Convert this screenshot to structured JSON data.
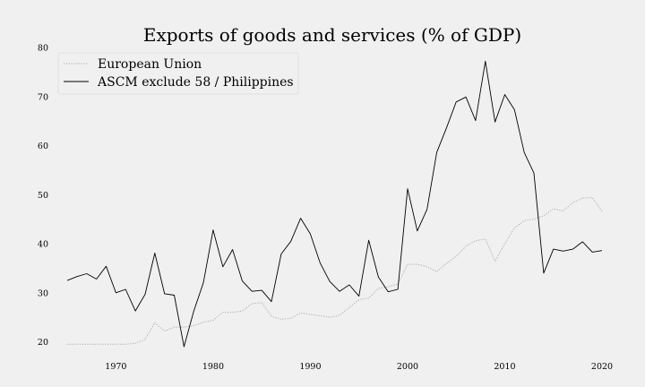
{
  "chart_data": {
    "type": "line",
    "title": "Exports of goods and services (% of GDP)",
    "xlabel": "",
    "ylabel": "",
    "xlim": [
      1962.5,
      2023.5
    ],
    "ylim": [
      17,
      80
    ],
    "x_ticks": [
      "1970",
      "1980",
      "1990",
      "2000",
      "2010",
      "2020"
    ],
    "y_ticks": [
      "20",
      "30",
      "40",
      "50",
      "60",
      "70",
      "80"
    ],
    "grid": false,
    "legend_position": "top-left",
    "x": [
      1965,
      1966,
      1967,
      1968,
      1969,
      1970,
      1971,
      1972,
      1973,
      1974,
      1975,
      1976,
      1977,
      1978,
      1979,
      1980,
      1981,
      1982,
      1983,
      1984,
      1985,
      1986,
      1987,
      1988,
      1989,
      1990,
      1991,
      1992,
      1993,
      1994,
      1995,
      1996,
      1997,
      1998,
      1999,
      2000,
      2001,
      2002,
      2003,
      2004,
      2005,
      2006,
      2007,
      2008,
      2009,
      2010,
      2011,
      2012,
      2013,
      2014,
      2015,
      2016,
      2017,
      2018,
      2019,
      2020
    ],
    "series": [
      {
        "name": "European Union",
        "style": "dotted",
        "color": "#aaaaaa",
        "values": [
          19.5,
          19.5,
          19.5,
          19.5,
          19.5,
          19.5,
          19.5,
          19.7,
          20.5,
          23.9,
          22.2,
          23.0,
          23.0,
          23.3,
          24.0,
          24.4,
          26.0,
          26.0,
          26.3,
          27.8,
          28.0,
          25.2,
          24.6,
          24.8,
          25.9,
          25.6,
          25.3,
          25.0,
          25.4,
          27.0,
          28.6,
          28.9,
          30.9,
          31.2,
          31.8,
          35.8,
          35.8,
          35.3,
          34.3,
          36.0,
          37.4,
          39.5,
          40.6,
          41.0,
          36.4,
          40.0,
          43.2,
          44.7,
          45.0,
          45.7,
          47.1,
          46.7,
          48.4,
          49.3,
          49.4,
          46.6
        ]
      },
      {
        "name": "ASCM exclude 58 / Philippines",
        "style": "solid",
        "color": "#000000",
        "values": [
          32.5,
          33.3,
          33.9,
          32.8,
          35.4,
          30.0,
          30.7,
          26.3,
          29.7,
          38.1,
          29.8,
          29.5,
          19.0,
          26.2,
          32.1,
          42.8,
          35.3,
          38.8,
          32.4,
          30.3,
          30.5,
          28.2,
          37.9,
          40.5,
          45.2,
          42.0,
          36.1,
          32.3,
          30.3,
          31.6,
          29.3,
          40.7,
          33.2,
          30.2,
          30.7,
          51.2,
          42.6,
          47.0,
          58.6,
          63.6,
          68.9,
          69.9,
          65.1,
          77.2,
          64.8,
          70.4,
          67.3,
          58.6,
          54.4,
          34.0,
          38.9,
          38.5,
          38.9,
          40.4,
          38.3,
          38.6
        ]
      }
    ]
  }
}
